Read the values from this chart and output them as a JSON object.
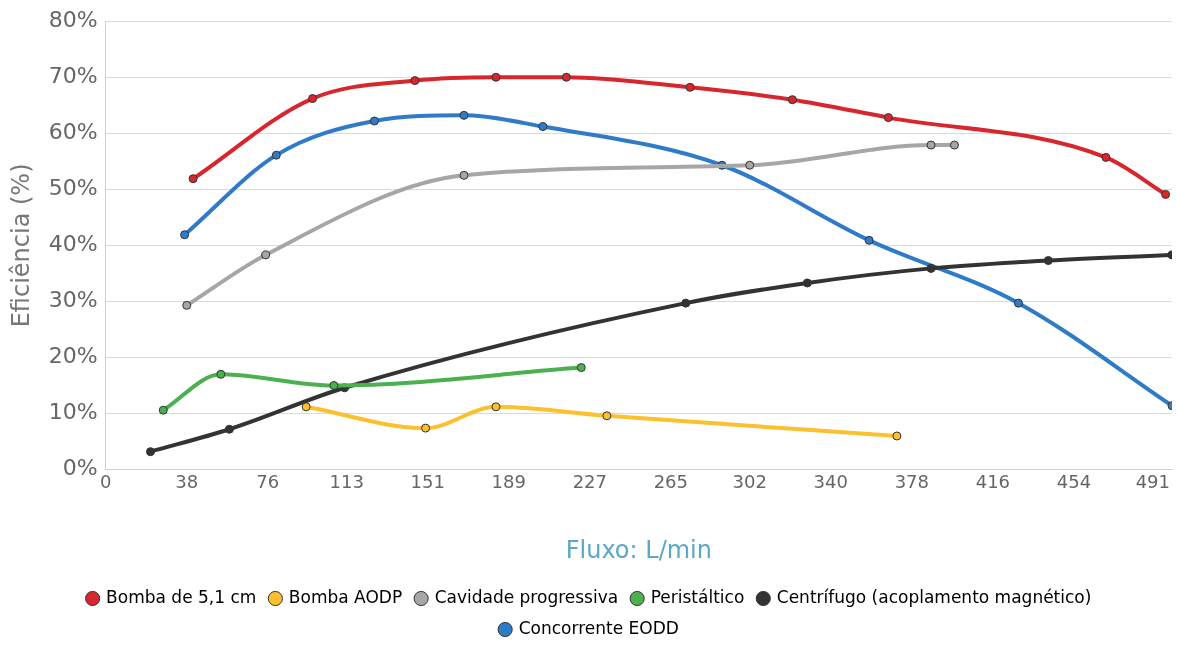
{
  "chart_data": {
    "type": "line",
    "xlabel": "Fluxo: L/min",
    "ylabel": "Eficiência (%)",
    "xlim": [
      0,
      500
    ],
    "xticks": [
      0,
      38,
      76,
      113,
      151,
      189,
      227,
      265,
      302,
      340,
      378,
      416,
      454,
      491
    ],
    "ylim": [
      0,
      80
    ],
    "yticks": [
      {
        "value": 0,
        "label": "0%"
      },
      {
        "value": 10,
        "label": "10%"
      },
      {
        "value": 20,
        "label": "20%"
      },
      {
        "value": 30,
        "label": "30%"
      },
      {
        "value": 40,
        "label": "40%"
      },
      {
        "value": 50,
        "label": "50%"
      },
      {
        "value": 60,
        "label": "60%"
      },
      {
        "value": 70,
        "label": "70%"
      },
      {
        "value": 80,
        "label": "80%"
      }
    ],
    "grid": "y",
    "legend": "bottom",
    "marker": "circle",
    "line_style": "solid",
    "series": [
      {
        "name": "Bomba de 5,1 cm",
        "color": "#d7262e",
        "x": [
          41,
          97,
          145,
          183,
          216,
          274,
          322,
          367,
          469,
          497
        ],
        "values": [
          51.9,
          66.2,
          69.4,
          70.0,
          70.0,
          68.2,
          66.0,
          62.8,
          55.7,
          49.1
        ]
      },
      {
        "name": "Bomba AODP",
        "color": "#fbc02d",
        "x": [
          94,
          150,
          183,
          235,
          371
        ],
        "values": [
          11.2,
          7.4,
          11.2,
          9.6,
          6.0
        ]
      },
      {
        "name": "Cavidade progressiva",
        "color": "#a6a6a6",
        "x": [
          38,
          75,
          168,
          302,
          387,
          398
        ],
        "values": [
          29.3,
          38.3,
          52.5,
          54.3,
          57.9,
          57.9
        ]
      },
      {
        "name": "Peristáltico",
        "color": "#4caf50",
        "x": [
          27,
          54,
          107,
          223
        ],
        "values": [
          10.6,
          17.0,
          15.0,
          18.2
        ]
      },
      {
        "name": "Centrífugo (acoplamento magnético)",
        "color": "#333333",
        "x": [
          21,
          58,
          112,
          272,
          329,
          387,
          442,
          500
        ],
        "values": [
          3.2,
          7.2,
          14.6,
          29.7,
          33.3,
          35.9,
          37.3,
          38.3
        ]
      },
      {
        "name": "Concorrente EODD",
        "color": "#2f7bc8",
        "x": [
          37,
          80,
          126,
          168,
          205,
          289,
          358,
          428,
          500
        ],
        "values": [
          41.9,
          56.1,
          62.2,
          63.2,
          61.2,
          54.3,
          40.9,
          29.7,
          11.4
        ]
      }
    ]
  }
}
